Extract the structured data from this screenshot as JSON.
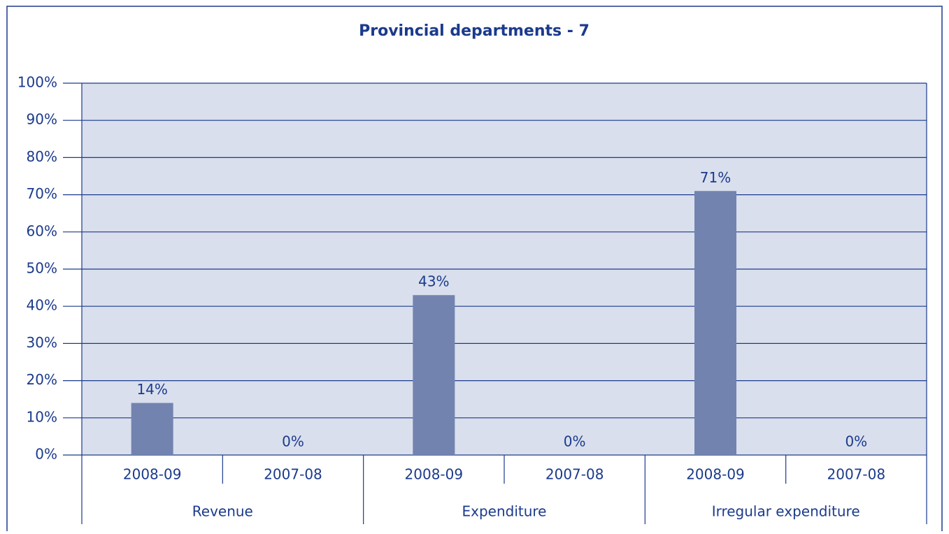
{
  "chart_data": {
    "type": "bar",
    "title": "Provincial departments - 7",
    "categories": [
      "2008-09",
      "2007-08",
      "2008-09",
      "2007-08",
      "2008-09",
      "2007-08"
    ],
    "groups": [
      "Revenue",
      "Expenditure",
      "Irregular expenditure"
    ],
    "values": [
      14,
      0,
      43,
      0,
      71,
      0
    ],
    "value_labels": [
      "14%",
      "0%",
      "43%",
      "0%",
      "71%",
      "0%"
    ],
    "color": "#7283b0",
    "ylim": [
      0,
      100
    ],
    "yticks": [
      {
        "value": 0,
        "label": "0%"
      },
      {
        "value": 10,
        "label": "10%"
      },
      {
        "value": 20,
        "label": "20%"
      },
      {
        "value": 30,
        "label": "30%"
      },
      {
        "value": 40,
        "label": "40%"
      },
      {
        "value": 50,
        "label": "50%"
      },
      {
        "value": 60,
        "label": "60%"
      },
      {
        "value": 70,
        "label": "70%"
      },
      {
        "value": 80,
        "label": "80%"
      },
      {
        "value": 90,
        "label": "90%"
      },
      {
        "value": 100,
        "label": "100%"
      }
    ],
    "grid": true
  }
}
